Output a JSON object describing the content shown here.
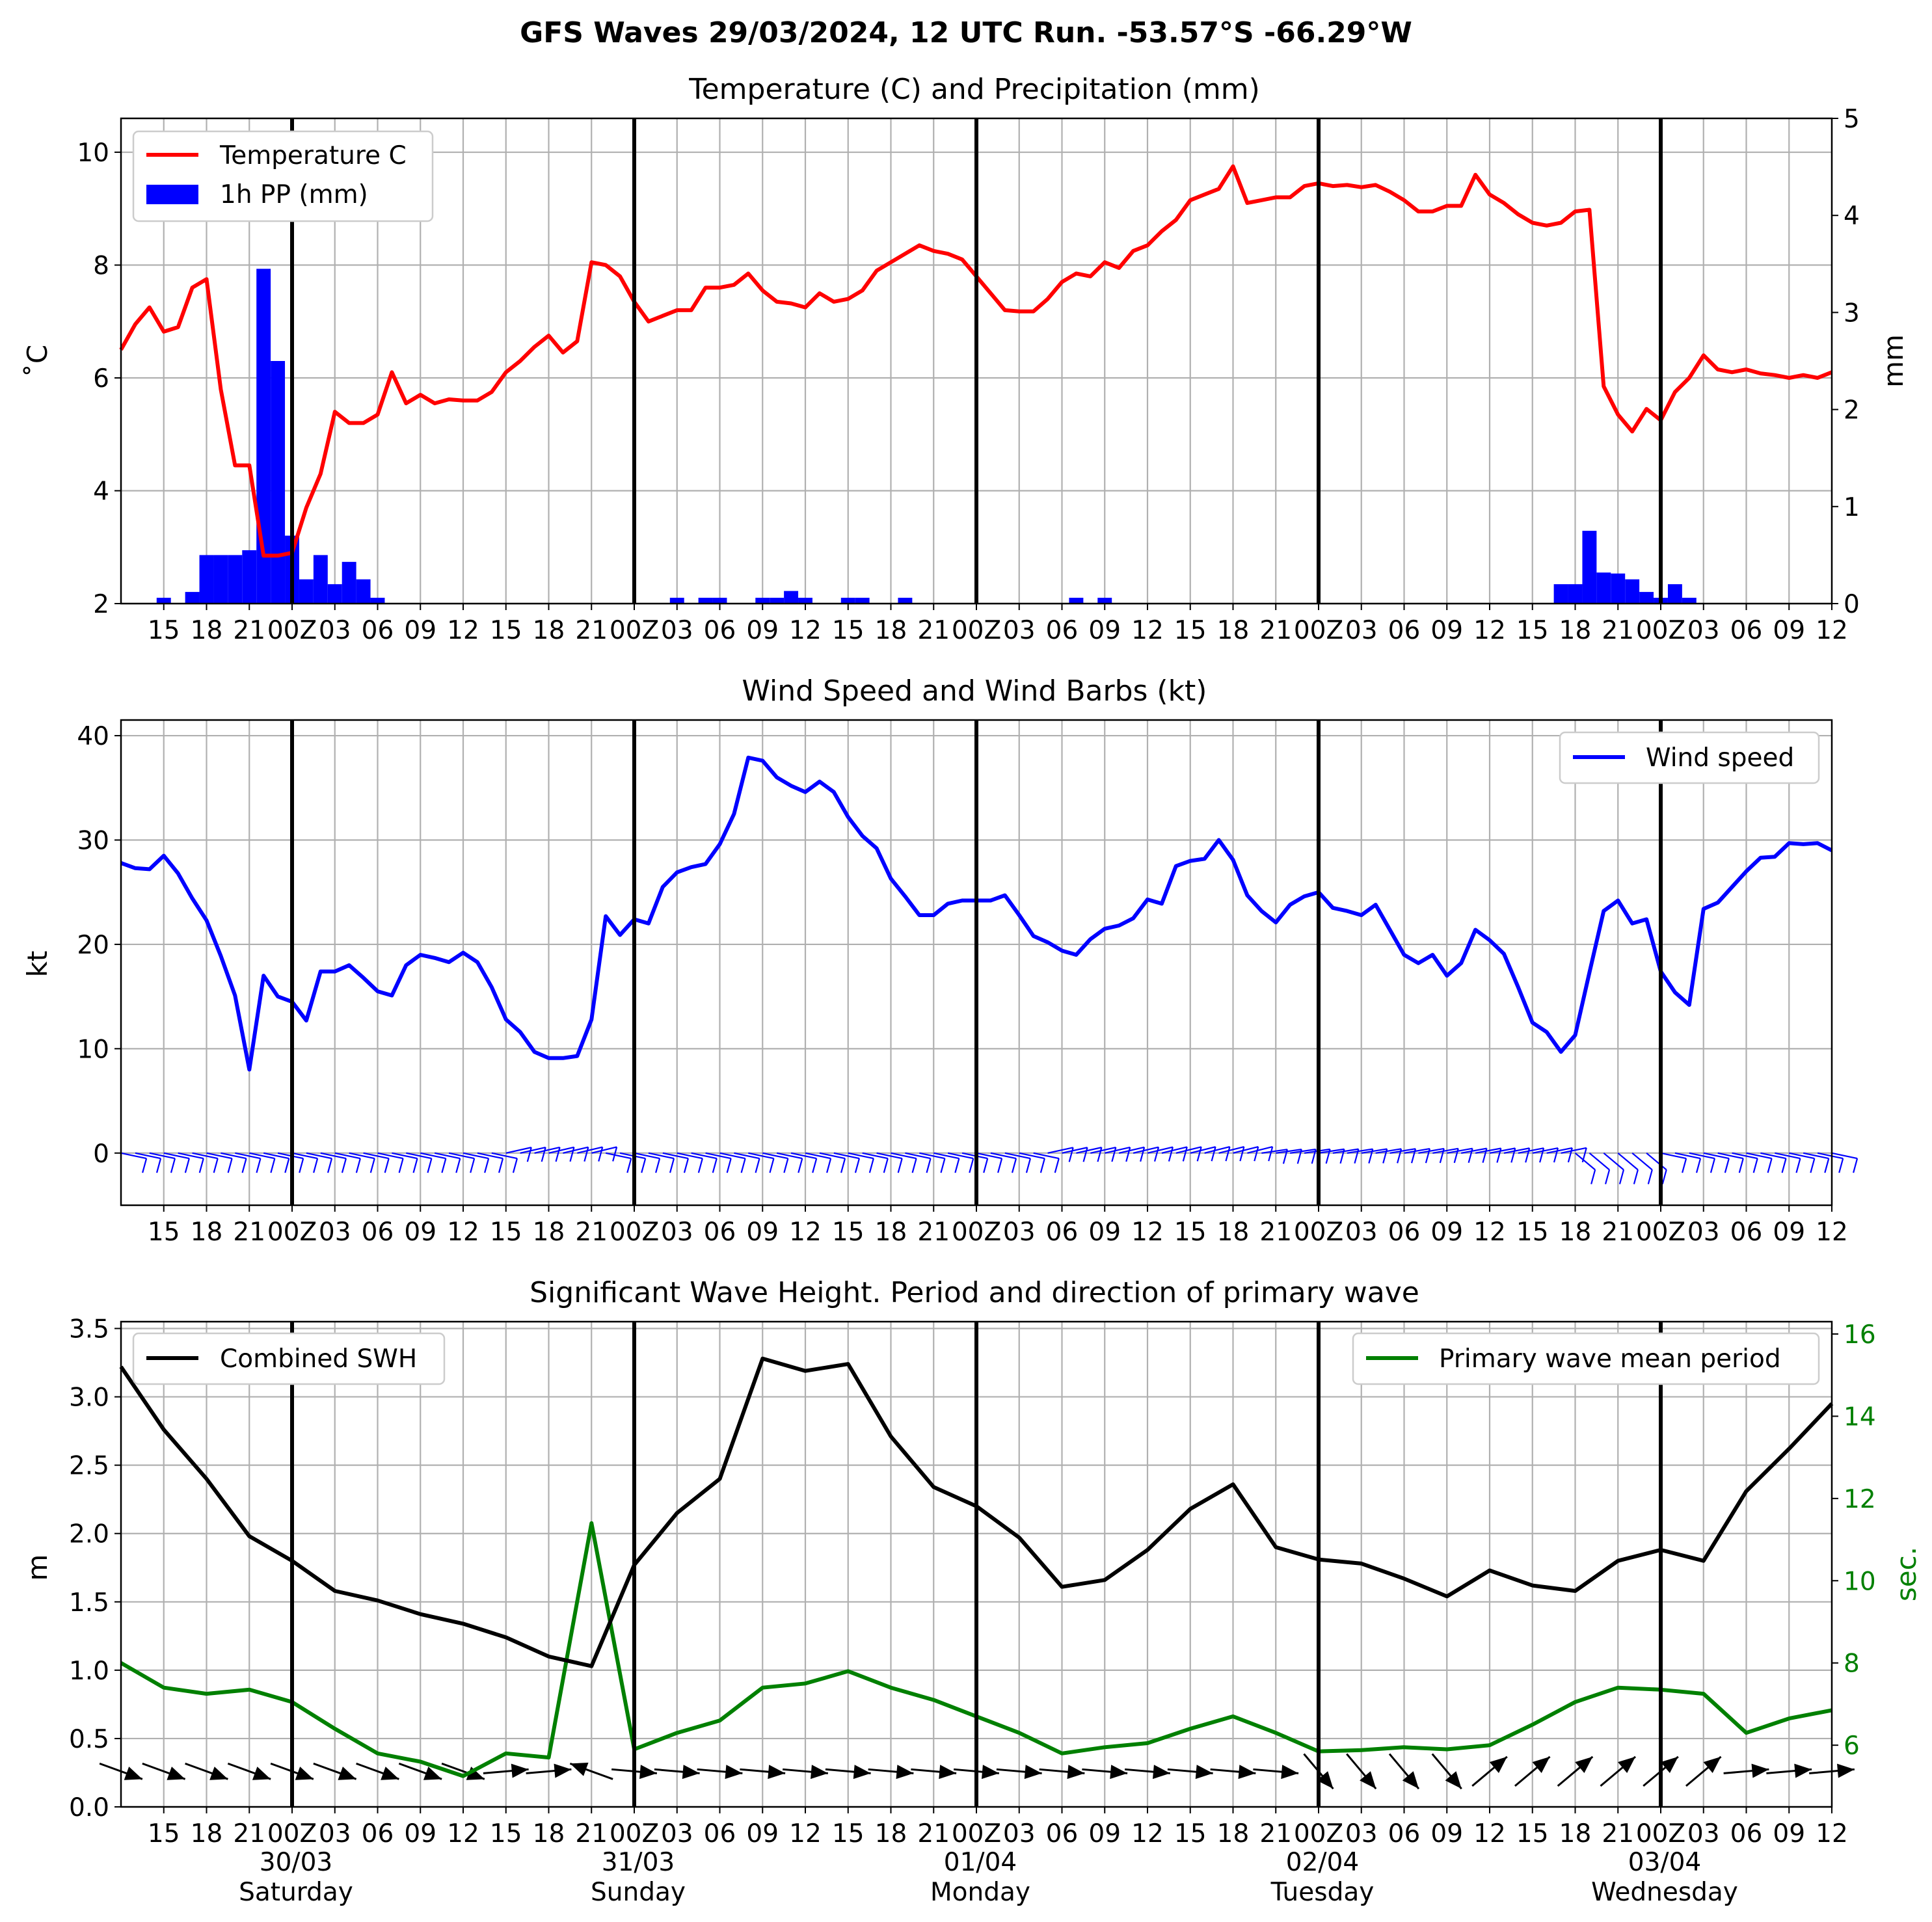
{
  "figure": {
    "title": "GFS Waves 29/03/2024, 12 UTC Run. -53.57°S -66.29°W"
  },
  "time_axis": {
    "x_tick_labels": [
      "15",
      "18",
      "21",
      "00Z",
      "03",
      "06",
      "09",
      "12",
      "15",
      "18",
      "21",
      "00Z",
      "03",
      "06",
      "09",
      "12",
      "15",
      "18",
      "21",
      "00Z",
      "03",
      "06",
      "09",
      "12",
      "15",
      "18",
      "21",
      "00Z",
      "03",
      "06",
      "09",
      "12",
      "15",
      "18",
      "21",
      "00Z",
      "03",
      "06",
      "09",
      "12"
    ],
    "day_labels": [
      {
        "date": "30/03",
        "weekday": "Saturday"
      },
      {
        "date": "31/03",
        "weekday": "Sunday"
      },
      {
        "date": "01/04",
        "weekday": "Monday"
      },
      {
        "date": "02/04",
        "weekday": "Tuesday"
      },
      {
        "date": "03/04",
        "weekday": "Wednesday"
      }
    ]
  },
  "panels": {
    "temp": {
      "title": "Temperature (C) and Precipitation (mm)",
      "ylabel_left": "˚C",
      "ylabel_right": "mm",
      "legend_temp": "Temperature C",
      "legend_precip": "1h PP (mm)"
    },
    "wind": {
      "title": "Wind Speed and Wind Barbs (kt)",
      "ylabel": "kt",
      "legend": "Wind speed"
    },
    "wave": {
      "title": "Significant Wave Height. Period and direction of primary wave",
      "ylabel_left": "m",
      "ylabel_right": "sec.",
      "legend_swh": "Combined SWH",
      "legend_period": "Primary wave mean period"
    }
  },
  "colors": {
    "temperature": "#ff0000",
    "precip": "#0000ff",
    "wind": "#0000ff",
    "swh": "#000000",
    "period": "#008000",
    "grid": "#b0b0b0"
  },
  "chart_data": [
    {
      "type": "line",
      "title": "Temperature (C) and Precipitation (mm)",
      "x_unit": "hours from 29/03/2024 12 UTC",
      "xlim": [
        0,
        120
      ],
      "ylim": [
        2,
        10.6
      ],
      "y2lim": [
        0,
        5
      ],
      "yticks": [
        2,
        4,
        6,
        8,
        10
      ],
      "y2ticks": [
        0,
        1,
        2,
        3,
        4,
        5
      ],
      "series": [
        {
          "name": "Temperature C",
          "axis": "left",
          "x_step": 1,
          "values": [
            6.5,
            6.95,
            7.25,
            6.82,
            6.9,
            7.6,
            7.75,
            5.8,
            4.45,
            4.45,
            2.85,
            2.85,
            2.9,
            3.7,
            4.3,
            5.4,
            5.2,
            5.2,
            5.35,
            6.1,
            5.55,
            5.7,
            5.55,
            5.62,
            5.6,
            5.6,
            5.75,
            6.1,
            6.3,
            6.55,
            6.75,
            6.45,
            6.65,
            8.05,
            8.0,
            7.8,
            7.35,
            7.0,
            7.1,
            7.2,
            7.2,
            7.6,
            7.6,
            7.65,
            7.85,
            7.55,
            7.35,
            7.32,
            7.25,
            7.5,
            7.35,
            7.4,
            7.55,
            7.9,
            8.05,
            8.2,
            8.35,
            8.25,
            8.2,
            8.1,
            7.8,
            7.5,
            7.2,
            7.18,
            7.18,
            7.4,
            7.7,
            7.85,
            7.8,
            8.05,
            7.95,
            8.25,
            8.35,
            8.6,
            8.8,
            9.15,
            9.25,
            9.35,
            9.75,
            9.1,
            9.15,
            9.2,
            9.2,
            9.4,
            9.45,
            9.4,
            9.42,
            9.38,
            9.42,
            9.3,
            9.15,
            8.95,
            8.95,
            9.05,
            9.05,
            9.6,
            9.25,
            9.1,
            8.9,
            8.75,
            8.7,
            8.75,
            8.95,
            8.98,
            5.85,
            5.35,
            5.05,
            5.45,
            5.25,
            5.75,
            6.0,
            6.4,
            6.15,
            6.1,
            6.15,
            6.08,
            6.05,
            6.0,
            6.05,
            6.0,
            6.1
          ]
        },
        {
          "name": "1h PP (mm)",
          "axis": "right",
          "type": "bar",
          "points": [
            [
              3,
              0.06
            ],
            [
              5,
              0.12
            ],
            [
              6,
              0.5
            ],
            [
              7,
              0.5
            ],
            [
              8,
              0.5
            ],
            [
              9,
              0.55
            ],
            [
              10,
              3.45
            ],
            [
              11,
              2.5
            ],
            [
              12,
              0.7
            ],
            [
              13,
              0.25
            ],
            [
              14,
              0.5
            ],
            [
              15,
              0.2
            ],
            [
              16,
              0.43
            ],
            [
              17,
              0.25
            ],
            [
              18,
              0.06
            ],
            [
              39,
              0.06
            ],
            [
              41,
              0.06
            ],
            [
              42,
              0.06
            ],
            [
              45,
              0.06
            ],
            [
              46,
              0.06
            ],
            [
              47,
              0.13
            ],
            [
              48,
              0.06
            ],
            [
              51,
              0.06
            ],
            [
              52,
              0.06
            ],
            [
              55,
              0.06
            ],
            [
              67,
              0.06
            ],
            [
              69,
              0.06
            ],
            [
              101,
              0.2
            ],
            [
              102,
              0.2
            ],
            [
              103,
              0.75
            ],
            [
              104,
              0.32
            ],
            [
              105,
              0.31
            ],
            [
              106,
              0.25
            ],
            [
              107,
              0.12
            ],
            [
              108,
              0.06
            ],
            [
              109,
              0.2
            ],
            [
              110,
              0.06
            ]
          ]
        }
      ]
    },
    {
      "type": "line",
      "title": "Wind Speed and Wind Barbs (kt)",
      "x_unit": "hours from 29/03/2024 12 UTC",
      "xlim": [
        0,
        120
      ],
      "ylim": [
        -5,
        41.5
      ],
      "yticks": [
        0,
        10,
        20,
        30,
        40
      ],
      "series": [
        {
          "name": "Wind speed",
          "x_step": 1,
          "values": [
            27.8,
            27.3,
            27.2,
            28.5,
            26.8,
            24.4,
            22.3,
            18.9,
            15.1,
            8.0,
            17.0,
            15.0,
            14.5,
            12.7,
            17.4,
            17.4,
            18.0,
            16.8,
            15.5,
            15.1,
            18.0,
            19.0,
            18.7,
            18.3,
            19.2,
            18.3,
            15.9,
            12.8,
            11.6,
            9.7,
            9.1,
            9.1,
            9.3,
            12.8,
            22.7,
            20.9,
            22.4,
            22.0,
            25.5,
            26.9,
            27.4,
            27.7,
            29.6,
            32.5,
            37.9,
            37.6,
            36.0,
            35.2,
            34.6,
            35.6,
            34.6,
            32.2,
            30.4,
            29.2,
            26.3,
            24.6,
            22.8,
            22.8,
            23.9,
            24.2,
            24.2,
            24.2,
            24.7,
            22.8,
            20.8,
            20.2,
            19.4,
            19.0,
            20.5,
            21.5,
            21.8,
            22.5,
            24.3,
            23.9,
            27.5,
            28.0,
            28.2,
            30.0,
            28.1,
            24.7,
            23.2,
            22.1,
            23.8,
            24.6,
            25.0,
            23.5,
            23.2,
            22.8,
            23.8,
            21.4,
            19.0,
            18.2,
            19.0,
            17.0,
            18.2,
            21.4,
            20.4,
            19.1,
            15.9,
            12.5,
            11.6,
            9.7,
            11.3,
            17.3,
            23.2,
            24.2,
            22.0,
            22.4,
            17.4,
            15.4,
            14.2,
            23.4,
            24.0,
            25.5,
            27.0,
            28.3,
            28.4,
            29.7,
            29.6,
            29.7,
            29.0
          ]
        }
      ],
      "barbs": {
        "count": 121,
        "x_step": 1
      }
    },
    {
      "type": "line",
      "title": "Significant Wave Height. Period and direction of primary wave",
      "x_unit": "hours from 29/03/2024 12 UTC",
      "xlim": [
        0,
        120
      ],
      "ylim": [
        0,
        3.55
      ],
      "y2lim": [
        4.5,
        16.3
      ],
      "yticks": [
        0.0,
        0.5,
        1.0,
        1.5,
        2.0,
        2.5,
        3.0,
        3.5
      ],
      "y2ticks": [
        6,
        8,
        10,
        12,
        14,
        16
      ],
      "series": [
        {
          "name": "Combined SWH",
          "axis": "left",
          "x_step": 3,
          "values": [
            3.22,
            2.76,
            2.4,
            1.98,
            1.8,
            1.58,
            1.51,
            1.41,
            1.34,
            1.24,
            1.1,
            1.03,
            1.77,
            2.15,
            2.4,
            3.28,
            3.19,
            3.24,
            2.71,
            2.34,
            2.2,
            1.97,
            1.61,
            1.66,
            1.88,
            2.18,
            2.36,
            1.9,
            1.81,
            1.78,
            1.67,
            1.54,
            1.73,
            1.62,
            1.58,
            1.8,
            1.88,
            1.8,
            2.31,
            2.62,
            2.95
          ]
        },
        {
          "name": "Primary wave mean period",
          "axis": "right",
          "x_step": 3,
          "values": [
            8.0,
            7.4,
            7.25,
            7.35,
            7.05,
            6.4,
            5.8,
            5.6,
            5.25,
            5.8,
            5.7,
            11.4,
            5.9,
            6.3,
            6.6,
            7.4,
            7.5,
            7.8,
            7.4,
            7.1,
            6.7,
            6.3,
            5.8,
            5.95,
            6.05,
            6.4,
            6.7,
            6.3,
            5.85,
            5.88,
            5.95,
            5.9,
            6.0,
            6.5,
            7.05,
            7.4,
            7.35,
            7.25,
            6.3,
            6.65,
            6.85
          ]
        }
      ],
      "direction_arrows": {
        "count": 41,
        "x_step": 3
      }
    }
  ]
}
